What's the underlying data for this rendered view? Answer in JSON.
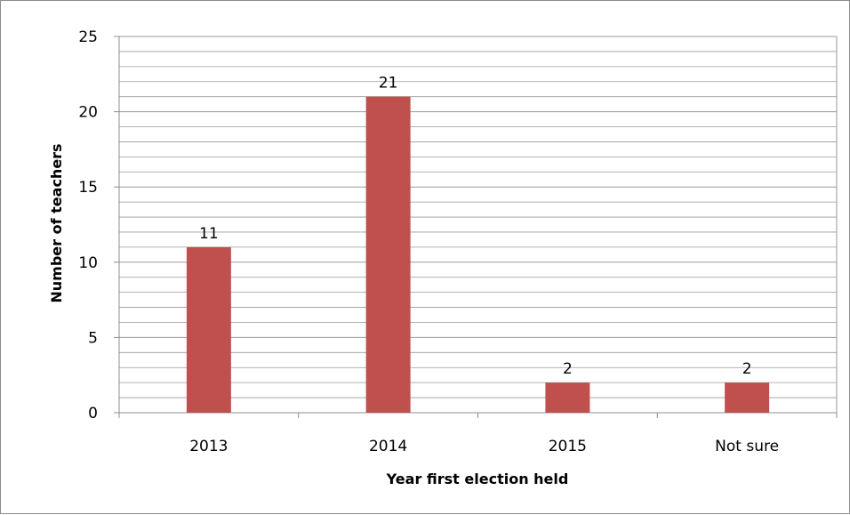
{
  "chart_data": {
    "type": "bar",
    "title": "",
    "categories": [
      "2013",
      "2014",
      "2015",
      "Not sure"
    ],
    "series": [
      {
        "values": [
          11,
          21,
          2,
          2
        ],
        "color": "#c0504d"
      }
    ],
    "data_labels": [
      "11",
      "21",
      "2",
      "2"
    ],
    "xlabel": "Year first election held",
    "ylabel": "Number of teachers",
    "ylim": [
      0,
      25
    ],
    "y_ticks": [
      0,
      5,
      10,
      15,
      20,
      25
    ],
    "y_tick_labels": [
      "0",
      "5",
      "10",
      "15",
      "20",
      "25"
    ],
    "minor_grid_step": 1,
    "grid": true,
    "legend": "none"
  }
}
